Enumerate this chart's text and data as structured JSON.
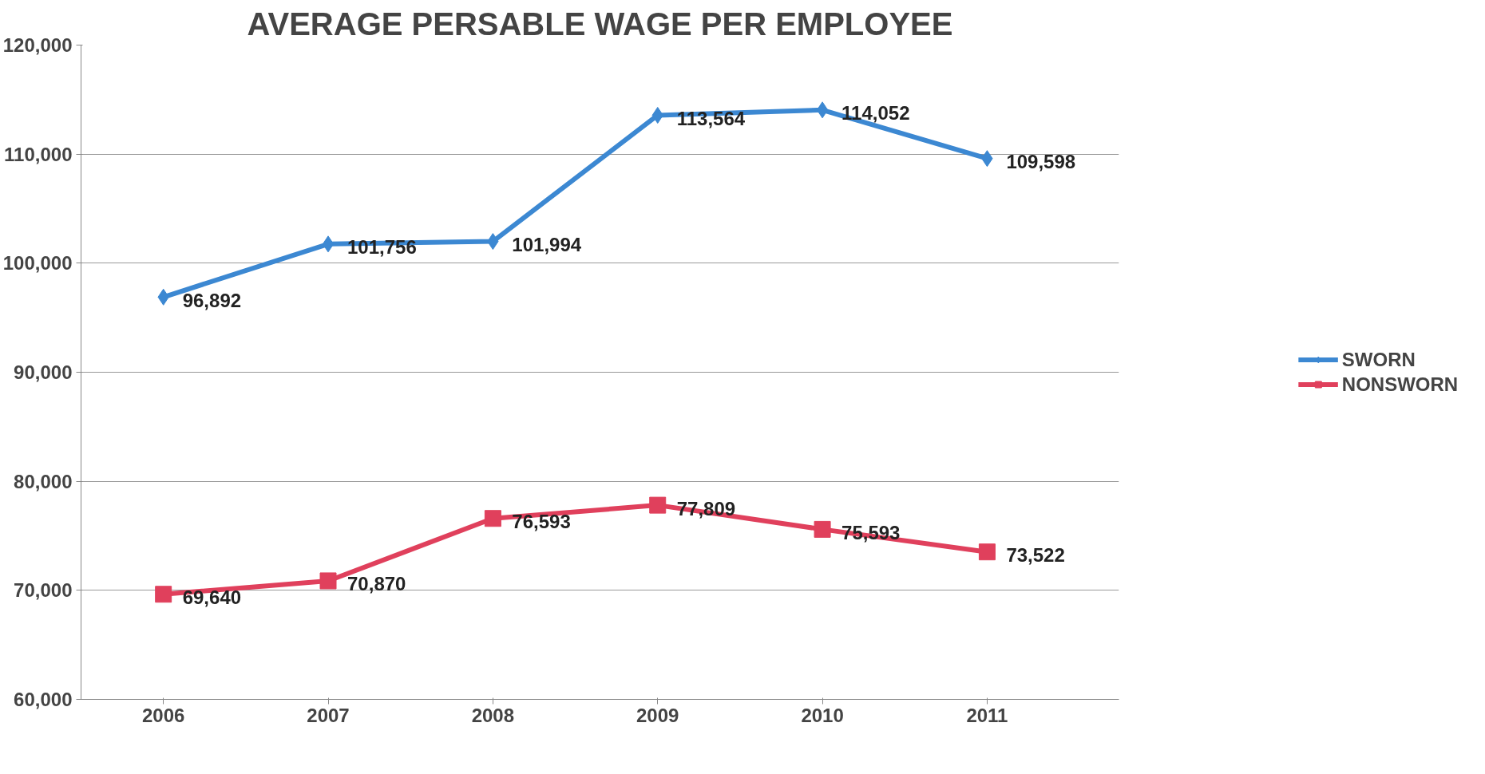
{
  "chart_data": {
    "type": "line",
    "title": "AVERAGE PERSABLE WAGE PER EMPLOYEE",
    "categories": [
      "2006",
      "2007",
      "2008",
      "2009",
      "2010",
      "2011"
    ],
    "series": [
      {
        "name": "SWORN",
        "color": "#3c88d2",
        "marker": "diamond",
        "values": [
          96892,
          101756,
          101994,
          113564,
          114052,
          109598
        ],
        "value_labels": [
          "96,892",
          "101,756",
          "101,994",
          "113,564",
          "114,052",
          "109,598"
        ]
      },
      {
        "name": "NONSWORN",
        "color": "#e0405c",
        "marker": "square",
        "values": [
          69640,
          70870,
          76593,
          77809,
          75593,
          73522
        ],
        "value_labels": [
          "69,640",
          "70,870",
          "76,593",
          "77,809",
          "75,593",
          "73,522"
        ]
      }
    ],
    "ylim": [
      60000,
      120000
    ],
    "yticks": [
      {
        "value": 60000,
        "label": "60,000"
      },
      {
        "value": 70000,
        "label": "70,000"
      },
      {
        "value": 80000,
        "label": "80,000"
      },
      {
        "value": 90000,
        "label": "90,000"
      },
      {
        "value": 100000,
        "label": "100,000"
      },
      {
        "value": 110000,
        "label": "110,000"
      },
      {
        "value": 120000,
        "label": "120,000"
      }
    ],
    "grid": "y",
    "legend": "right"
  }
}
